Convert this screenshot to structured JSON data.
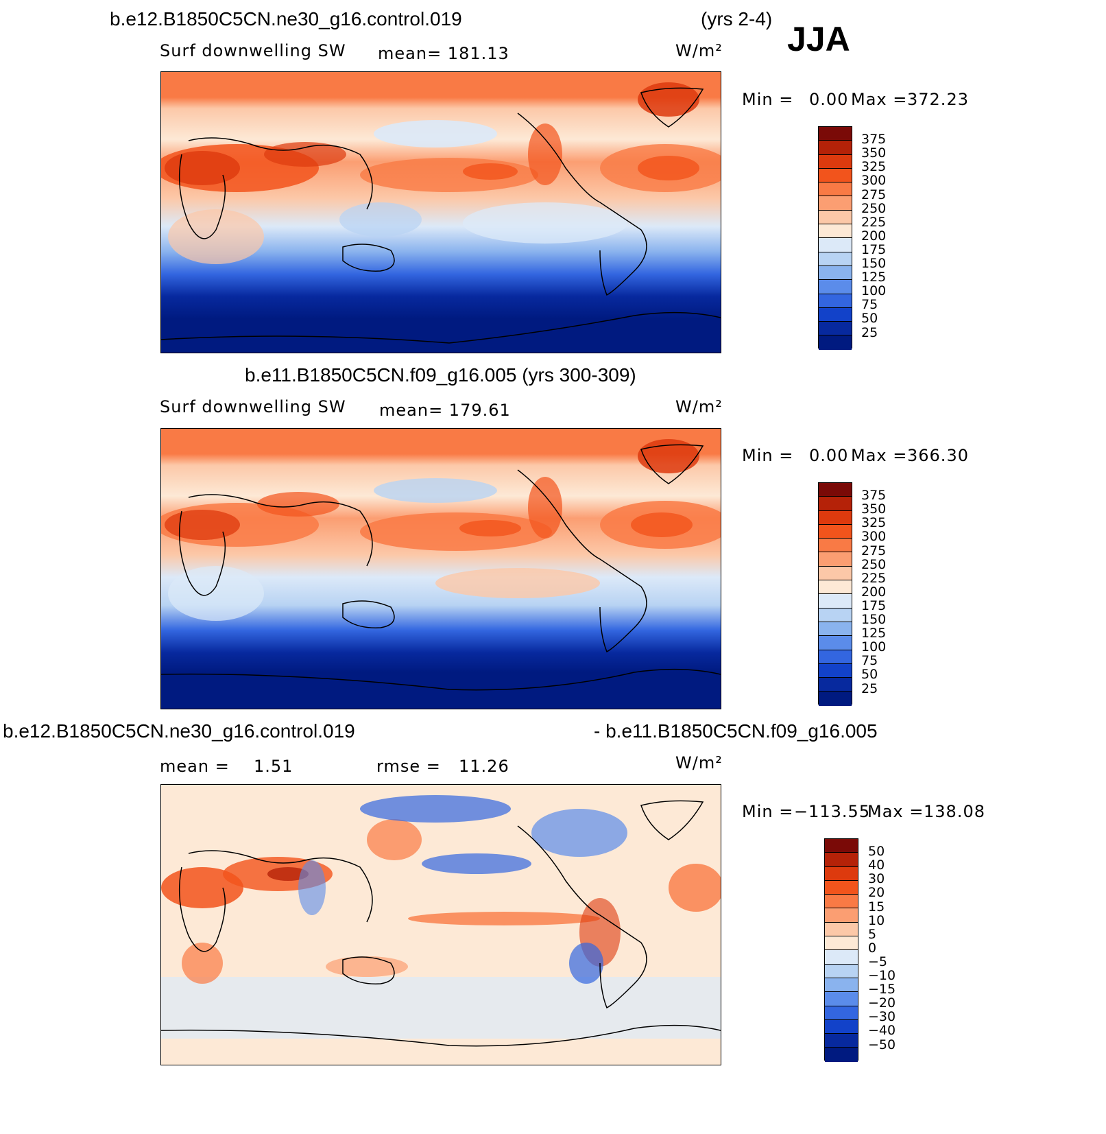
{
  "season": "JJA",
  "units_label": "W/m²",
  "chart_data": [
    {
      "type": "heatmap",
      "panel": "top",
      "case": "b.e12.B1850C5CN.ne30_g16.control.019",
      "years": "(yrs 2-4)",
      "variable": "Surf  downwelling  SW",
      "mean_label": "mean=  181.13",
      "units": "W/m²",
      "min_label": "Min  =",
      "min_value": "0.00",
      "max_label": "Max  =",
      "max_value": "372.23",
      "levels": [
        "375",
        "350",
        "325",
        "300",
        "275",
        "250",
        "225",
        "200",
        "175",
        "150",
        "125",
        "100",
        "75",
        "50",
        "25"
      ],
      "colors": [
        "#7a0a07",
        "#b52208",
        "#dd3a0e",
        "#f2541c",
        "#f97a45",
        "#fb9e72",
        "#fcc8a8",
        "#fde9d6",
        "#dce9f8",
        "#b8d3f3",
        "#8ab3ee",
        "#5b8cea",
        "#3366e0",
        "#1242c9",
        "#07299e",
        "#001a80"
      ],
      "zonal_profile": [
        {
          "lat": 90,
          "value": 280
        },
        {
          "lat": 70,
          "value": 255
        },
        {
          "lat": 50,
          "value": 210
        },
        {
          "lat": 30,
          "value": 265
        },
        {
          "lat": 10,
          "value": 220
        },
        {
          "lat": -10,
          "value": 215
        },
        {
          "lat": -30,
          "value": 160
        },
        {
          "lat": -50,
          "value": 75
        },
        {
          "lat": -70,
          "value": 20
        },
        {
          "lat": -90,
          "value": 0
        }
      ]
    },
    {
      "type": "heatmap",
      "panel": "middle",
      "case": "b.e11.B1850C5CN.f09_g16.005 (yrs 300-309)",
      "variable": "Surf  downwelling  SW",
      "mean_label": "mean=  179.61",
      "units": "W/m²",
      "min_label": "Min  =",
      "min_value": "0.00",
      "max_label": "Max  =",
      "max_value": "366.30",
      "levels": [
        "375",
        "350",
        "325",
        "300",
        "275",
        "250",
        "225",
        "200",
        "175",
        "150",
        "125",
        "100",
        "75",
        "50",
        "25"
      ],
      "colors": [
        "#7a0a07",
        "#b52208",
        "#dd3a0e",
        "#f2541c",
        "#f97a45",
        "#fb9e72",
        "#fcc8a8",
        "#fde9d6",
        "#dce9f8",
        "#b8d3f3",
        "#8ab3ee",
        "#5b8cea",
        "#3366e0",
        "#1242c9",
        "#07299e",
        "#001a80"
      ]
    },
    {
      "type": "heatmap",
      "panel": "bottom",
      "case_a": "b.e12.B1850C5CN.ne30_g16.control.019",
      "case_b": "- b.e11.B1850C5CN.f09_g16.005",
      "mean_label": "mean  =",
      "mean_value": "1.51",
      "rmse_label": "rmse  =",
      "rmse_value": "11.26",
      "units": "W/m²",
      "min_label": "Min  =",
      "min_value": "−113.55",
      "max_label": "Max  =",
      "max_value": "138.08",
      "levels": [
        "50",
        "40",
        "30",
        "20",
        "15",
        "10",
        "5",
        "0",
        "−5",
        "−10",
        "−15",
        "−20",
        "−30",
        "−40",
        "−50"
      ],
      "colors": [
        "#7a0a07",
        "#b52208",
        "#dd3a0e",
        "#f2541c",
        "#f97a45",
        "#fb9e72",
        "#fcc8a8",
        "#fde9d6",
        "#dce9f8",
        "#b8d3f3",
        "#8ab3ee",
        "#5b8cea",
        "#3366e0",
        "#1242c9",
        "#07299e",
        "#001a80"
      ]
    }
  ]
}
